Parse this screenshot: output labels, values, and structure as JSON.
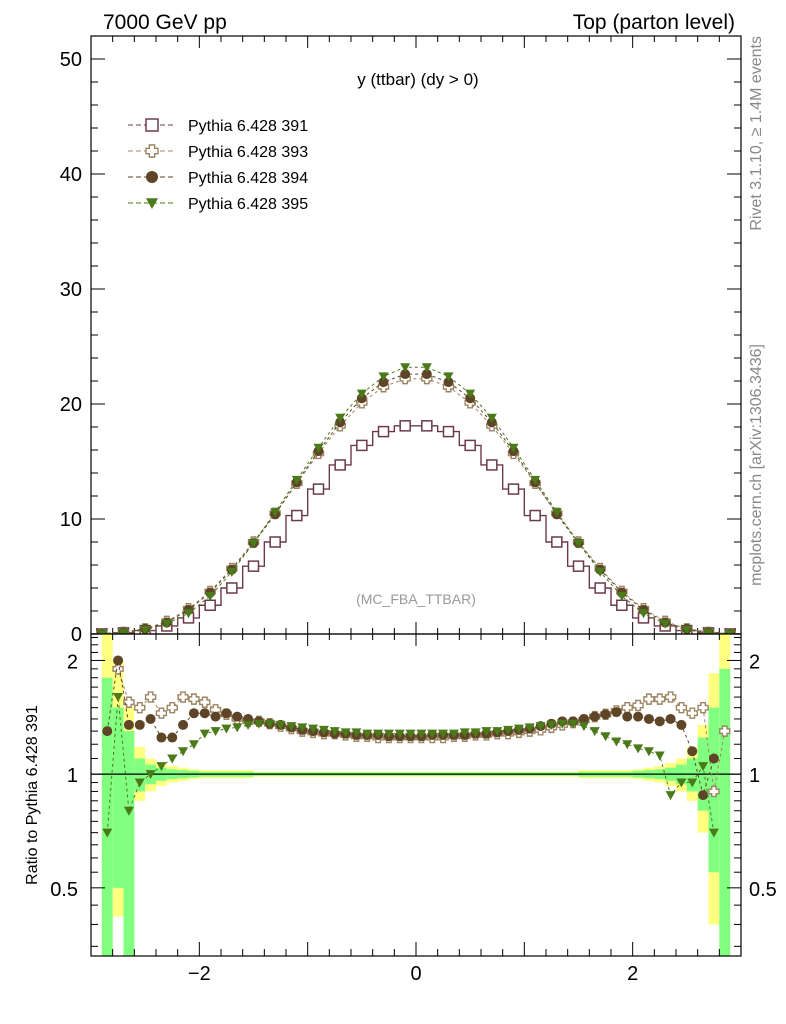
{
  "header": {
    "left": "7000 GeV pp",
    "right": "Top (parton level)"
  },
  "side": {
    "rivet": "Rivet 3.1.10, ≥ 1.4M events",
    "mcplots": "mcplots.cern.ch [arXiv:1306.3436]"
  },
  "plot": {
    "title": "y (ttbar) (dy > 0)",
    "watermark": "(MC_FBA_TTBAR)",
    "ratio_ylabel": "Ratio to Pythia 6.428 391"
  },
  "chart_data": [
    {
      "type": "line",
      "panel": "main",
      "xlim": [
        -3.0,
        3.0
      ],
      "ylim": [
        0,
        52
      ],
      "yticks": [
        "0",
        "10",
        "20",
        "30",
        "40",
        "50"
      ],
      "xticks": [],
      "legend_position": "top-left",
      "series": [
        {
          "name": "Pythia 6.428 391",
          "color": "#6b3a4b",
          "marker": "open-square",
          "x": [
            -2.9,
            -2.7,
            -2.5,
            -2.3,
            -2.1,
            -1.9,
            -1.7,
            -1.5,
            -1.3,
            -1.1,
            -0.9,
            -0.7,
            -0.5,
            -0.3,
            -0.1,
            0.1,
            0.3,
            0.5,
            0.7,
            0.9,
            1.1,
            1.3,
            1.5,
            1.7,
            1.9,
            2.1,
            2.3,
            2.5,
            2.7,
            2.9
          ],
          "values": [
            0.02,
            0.1,
            0.3,
            0.7,
            1.4,
            2.5,
            4.0,
            5.9,
            8.0,
            10.3,
            12.6,
            14.7,
            16.4,
            17.6,
            18.1,
            18.1,
            17.6,
            16.4,
            14.7,
            12.6,
            10.3,
            8.0,
            5.9,
            4.0,
            2.5,
            1.4,
            0.7,
            0.3,
            0.1,
            0.02
          ]
        },
        {
          "name": "Pythia 6.428 393",
          "color": "#9c8460",
          "marker": "open-cross",
          "x": [
            -2.9,
            -2.7,
            -2.5,
            -2.3,
            -2.1,
            -1.9,
            -1.7,
            -1.5,
            -1.3,
            -1.1,
            -0.9,
            -0.7,
            -0.5,
            -0.3,
            -0.1,
            0.1,
            0.3,
            0.5,
            0.7,
            0.9,
            1.1,
            1.3,
            1.5,
            1.7,
            1.9,
            2.1,
            2.3,
            2.5,
            2.7,
            2.9
          ],
          "values": [
            0.03,
            0.15,
            0.45,
            1.1,
            2.2,
            3.7,
            5.7,
            8.0,
            10.5,
            13.1,
            15.7,
            18.1,
            20.1,
            21.5,
            22.2,
            22.2,
            21.5,
            20.1,
            18.1,
            15.7,
            13.1,
            10.5,
            8.0,
            5.7,
            3.7,
            2.2,
            1.1,
            0.45,
            0.15,
            0.03
          ]
        },
        {
          "name": "Pythia 6.428 394",
          "color": "#5e4528",
          "marker": "filled-circle",
          "x": [
            -2.9,
            -2.7,
            -2.5,
            -2.3,
            -2.1,
            -1.9,
            -1.7,
            -1.5,
            -1.3,
            -1.1,
            -0.9,
            -0.7,
            -0.5,
            -0.3,
            -0.1,
            0.1,
            0.3,
            0.5,
            0.7,
            0.9,
            1.1,
            1.3,
            1.5,
            1.7,
            1.9,
            2.1,
            2.3,
            2.5,
            2.7,
            2.9
          ],
          "values": [
            0.03,
            0.15,
            0.45,
            1.0,
            2.1,
            3.6,
            5.6,
            7.9,
            10.4,
            13.2,
            15.9,
            18.4,
            20.5,
            21.9,
            22.6,
            22.6,
            21.9,
            20.5,
            18.4,
            15.9,
            13.2,
            10.4,
            7.9,
            5.6,
            3.6,
            2.1,
            1.0,
            0.45,
            0.15,
            0.03
          ]
        },
        {
          "name": "Pythia 6.428 395",
          "color": "#4a7a1a",
          "marker": "filled-triangle-down",
          "x": [
            -2.9,
            -2.7,
            -2.5,
            -2.3,
            -2.1,
            -1.9,
            -1.7,
            -1.5,
            -1.3,
            -1.1,
            -0.9,
            -0.7,
            -0.5,
            -0.3,
            -0.1,
            0.1,
            0.3,
            0.5,
            0.7,
            0.9,
            1.1,
            1.3,
            1.5,
            1.7,
            1.9,
            2.1,
            2.3,
            2.5,
            2.7,
            2.9
          ],
          "values": [
            0.02,
            0.1,
            0.35,
            0.9,
            1.8,
            3.3,
            5.4,
            7.9,
            10.6,
            13.4,
            16.2,
            18.8,
            20.9,
            22.4,
            23.2,
            23.2,
            22.4,
            20.9,
            18.8,
            16.2,
            13.4,
            10.6,
            7.9,
            5.4,
            3.3,
            1.8,
            0.9,
            0.35,
            0.1,
            0.02
          ]
        }
      ]
    },
    {
      "type": "line",
      "panel": "ratio",
      "xlim": [
        -3.0,
        3.0
      ],
      "ylim": [
        0.33,
        2.35
      ],
      "yscale": "log",
      "xticks": [
        "−2",
        "0",
        "2"
      ],
      "yticks": [
        "0.5",
        "1",
        "2"
      ],
      "reference_line": 1,
      "band_colors": {
        "inner": "#80ff80",
        "outer": "#ffff80"
      },
      "bands": {
        "x_edges": [
          -2.9,
          -2.8,
          -2.7,
          -2.6,
          -2.5,
          -2.4,
          -2.3,
          -2.2,
          -2.1,
          -2.0,
          -1.5,
          1.5,
          2.0,
          2.1,
          2.2,
          2.3,
          2.4,
          2.5,
          2.6,
          2.7,
          2.8,
          2.9
        ],
        "inner_low": [
          0.33,
          0.5,
          0.33,
          0.9,
          0.94,
          0.96,
          0.97,
          0.975,
          0.98,
          0.985,
          0.99,
          0.985,
          0.98,
          0.975,
          0.97,
          0.96,
          0.94,
          0.9,
          0.8,
          0.55,
          0.33
        ],
        "inner_high": [
          1.8,
          1.5,
          1.3,
          1.1,
          1.06,
          1.04,
          1.03,
          1.025,
          1.02,
          1.015,
          1.01,
          1.015,
          1.02,
          1.025,
          1.03,
          1.04,
          1.06,
          1.1,
          1.25,
          1.5,
          1.9
        ],
        "outer_low": [
          0.33,
          0.42,
          0.33,
          0.85,
          0.9,
          0.93,
          0.95,
          0.96,
          0.97,
          0.975,
          0.985,
          0.975,
          0.97,
          0.96,
          0.95,
          0.93,
          0.9,
          0.85,
          0.7,
          0.4,
          0.33
        ],
        "outer_high": [
          2.35,
          2.0,
          1.5,
          1.18,
          1.1,
          1.07,
          1.05,
          1.04,
          1.03,
          1.025,
          1.015,
          1.025,
          1.03,
          1.04,
          1.05,
          1.07,
          1.1,
          1.18,
          1.35,
          1.85,
          2.35
        ]
      },
      "series": [
        {
          "name": "Pythia 6.428 393",
          "color": "#9c8460",
          "marker": "open-cross",
          "x": [
            -2.75,
            -2.65,
            -2.55,
            -2.45,
            -2.35,
            -2.25,
            -2.15,
            -2.05,
            -1.95,
            -1.85,
            -1.75,
            -1.65,
            -1.55,
            -1.45,
            -1.35,
            -1.25,
            -1.15,
            -1.05,
            -0.95,
            -0.85,
            -0.75,
            -0.65,
            -0.55,
            -0.45,
            -0.35,
            -0.25,
            -0.15,
            -0.05,
            0.05,
            0.15,
            0.25,
            0.35,
            0.45,
            0.55,
            0.65,
            0.75,
            0.85,
            0.95,
            1.05,
            1.15,
            1.25,
            1.35,
            1.45,
            1.55,
            1.65,
            1.75,
            1.85,
            1.95,
            2.05,
            2.15,
            2.25,
            2.35,
            2.45,
            2.55,
            2.65,
            2.75,
            2.85
          ],
          "values": [
            1.9,
            1.55,
            1.5,
            1.6,
            1.45,
            1.5,
            1.6,
            1.58,
            1.55,
            1.48,
            1.44,
            1.4,
            1.38,
            1.38,
            1.36,
            1.34,
            1.32,
            1.3,
            1.29,
            1.28,
            1.28,
            1.27,
            1.26,
            1.26,
            1.25,
            1.25,
            1.25,
            1.25,
            1.25,
            1.25,
            1.25,
            1.26,
            1.26,
            1.27,
            1.27,
            1.28,
            1.28,
            1.29,
            1.3,
            1.31,
            1.33,
            1.35,
            1.37,
            1.39,
            1.42,
            1.44,
            1.47,
            1.5,
            1.52,
            1.58,
            1.58,
            1.6,
            1.5,
            1.45,
            1.5,
            0.9,
            1.3
          ]
        },
        {
          "name": "Pythia 6.428 394",
          "color": "#5e4528",
          "marker": "filled-circle",
          "x": [
            -2.85,
            -2.75,
            -2.65,
            -2.55,
            -2.45,
            -2.35,
            -2.25,
            -2.15,
            -2.05,
            -1.95,
            -1.85,
            -1.75,
            -1.65,
            -1.55,
            -1.45,
            -1.35,
            -1.25,
            -1.15,
            -1.05,
            -0.95,
            -0.85,
            -0.75,
            -0.65,
            -0.55,
            -0.45,
            -0.35,
            -0.25,
            -0.15,
            -0.05,
            0.05,
            0.15,
            0.25,
            0.35,
            0.45,
            0.55,
            0.65,
            0.75,
            0.85,
            0.95,
            1.05,
            1.15,
            1.25,
            1.35,
            1.45,
            1.55,
            1.65,
            1.75,
            1.85,
            1.95,
            2.05,
            2.15,
            2.25,
            2.35,
            2.45,
            2.55,
            2.65,
            2.75
          ],
          "values": [
            1.3,
            2.0,
            1.35,
            1.35,
            1.4,
            1.25,
            1.25,
            1.35,
            1.45,
            1.45,
            1.42,
            1.45,
            1.42,
            1.4,
            1.38,
            1.36,
            1.35,
            1.33,
            1.31,
            1.3,
            1.29,
            1.28,
            1.28,
            1.27,
            1.27,
            1.27,
            1.26,
            1.26,
            1.26,
            1.26,
            1.27,
            1.27,
            1.27,
            1.27,
            1.28,
            1.28,
            1.29,
            1.3,
            1.31,
            1.32,
            1.34,
            1.36,
            1.38,
            1.38,
            1.4,
            1.42,
            1.44,
            1.46,
            1.42,
            1.42,
            1.4,
            1.38,
            1.4,
            1.35,
            1.15,
            0.88,
            1.1
          ]
        },
        {
          "name": "Pythia 6.428 395",
          "color": "#4a7a1a",
          "marker": "filled-triangle-down",
          "x": [
            -2.85,
            -2.75,
            -2.65,
            -2.55,
            -2.45,
            -2.35,
            -2.25,
            -2.15,
            -2.05,
            -1.95,
            -1.85,
            -1.75,
            -1.65,
            -1.55,
            -1.45,
            -1.35,
            -1.25,
            -1.15,
            -1.05,
            -0.95,
            -0.85,
            -0.75,
            -0.65,
            -0.55,
            -0.45,
            -0.35,
            -0.25,
            -0.15,
            -0.05,
            0.05,
            0.15,
            0.25,
            0.35,
            0.45,
            0.55,
            0.65,
            0.75,
            0.85,
            0.95,
            1.05,
            1.15,
            1.25,
            1.35,
            1.45,
            1.55,
            1.65,
            1.75,
            1.85,
            1.95,
            2.05,
            2.15,
            2.25,
            2.35,
            2.45,
            2.55,
            2.65,
            2.75
          ],
          "values": [
            0.7,
            1.6,
            0.8,
            0.95,
            1.0,
            1.05,
            1.1,
            1.15,
            1.2,
            1.28,
            1.3,
            1.32,
            1.33,
            1.35,
            1.36,
            1.36,
            1.35,
            1.34,
            1.33,
            1.32,
            1.31,
            1.3,
            1.29,
            1.29,
            1.28,
            1.28,
            1.28,
            1.28,
            1.28,
            1.28,
            1.28,
            1.28,
            1.28,
            1.29,
            1.29,
            1.3,
            1.3,
            1.31,
            1.32,
            1.33,
            1.34,
            1.35,
            1.36,
            1.36,
            1.34,
            1.3,
            1.26,
            1.22,
            1.2,
            1.17,
            1.15,
            1.12,
            0.88,
            0.95,
            0.95,
            1.05,
            0.7
          ]
        }
      ]
    }
  ]
}
